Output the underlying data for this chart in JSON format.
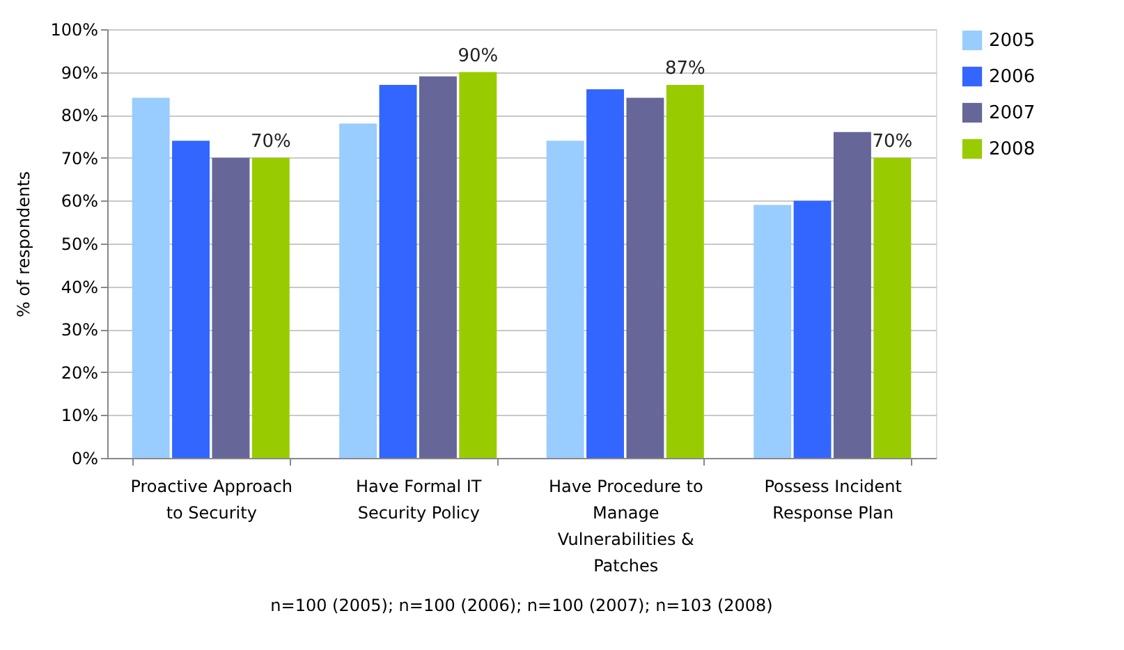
{
  "chart_data": {
    "type": "bar",
    "categories": [
      "Proactive Approach to Security",
      "Have Formal IT Security Policy",
      "Have Procedure to Manage Vulnerabilities & Patches",
      "Possess Incident Response Plan"
    ],
    "series": [
      {
        "name": "2005",
        "color": "#99ccff",
        "values": [
          84,
          78,
          74,
          59
        ]
      },
      {
        "name": "2006",
        "color": "#3366ff",
        "values": [
          74,
          87,
          86,
          60
        ]
      },
      {
        "name": "2007",
        "color": "#666699",
        "values": [
          70,
          89,
          84,
          76
        ]
      },
      {
        "name": "2008",
        "color": "#99cc00",
        "values": [
          70,
          90,
          87,
          70
        ],
        "value_labels": [
          "70%",
          "90%",
          "87%",
          "70%"
        ]
      }
    ],
    "ylabel": "% of respondents",
    "ylim": [
      0,
      100
    ],
    "yticks": [
      {
        "value": 0,
        "label": "0%"
      },
      {
        "value": 10,
        "label": "10%"
      },
      {
        "value": 20,
        "label": "20%"
      },
      {
        "value": 30,
        "label": "30%"
      },
      {
        "value": 40,
        "label": "40%"
      },
      {
        "value": 50,
        "label": "50%"
      },
      {
        "value": 60,
        "label": "60%"
      },
      {
        "value": 70,
        "label": "70%"
      },
      {
        "value": 80,
        "label": "80%"
      },
      {
        "value": 90,
        "label": "90%"
      },
      {
        "value": 100,
        "label": "100%"
      }
    ],
    "grid": "y",
    "legend": "right",
    "annotations": [
      "n=100 (2005);  n=100 (2006); n=100 (2007); n=103 (2008)"
    ]
  }
}
